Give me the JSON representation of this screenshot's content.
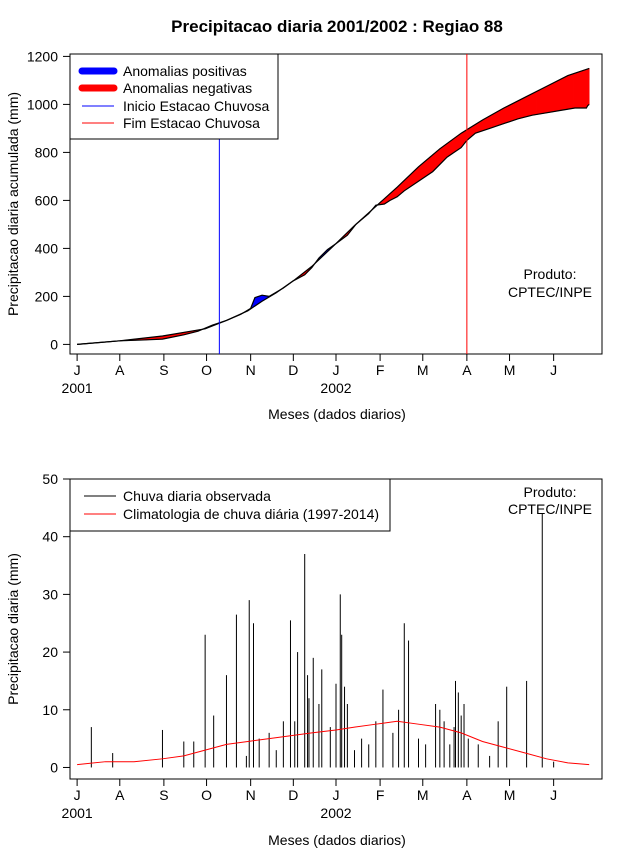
{
  "chart_data": [
    {
      "type": "area",
      "title": "Precipitacao diaria 2001/2002 : Regiao 88",
      "xlabel": "Meses (dados diarios)",
      "ylabel": "Precipitacao diaria acumulada (mm)",
      "ylim": [
        -40,
        1210
      ],
      "yticks": [
        0,
        200,
        400,
        600,
        800,
        1000,
        1200
      ],
      "xlim": [
        -5,
        369
      ],
      "month_ticks": [
        {
          "label": "J",
          "day": 0
        },
        {
          "label": "A",
          "day": 30
        },
        {
          "label": "S",
          "day": 61
        },
        {
          "label": "O",
          "day": 91
        },
        {
          "label": "N",
          "day": 122
        },
        {
          "label": "D",
          "day": 152
        },
        {
          "label": "J",
          "day": 182
        },
        {
          "label": "F",
          "day": 213
        },
        {
          "label": "M",
          "day": 243
        },
        {
          "label": "A",
          "day": 274
        },
        {
          "label": "M",
          "day": 304
        },
        {
          "label": "J",
          "day": 335
        }
      ],
      "year_labels": [
        {
          "label": "2001",
          "day": 0
        },
        {
          "label": "2002",
          "day": 182
        }
      ],
      "legend": {
        "position": "top-left",
        "entries": [
          {
            "label": "Anomalias positivas",
            "color": "#0000ff",
            "style": "thick"
          },
          {
            "label": "Anomalias negativas",
            "color": "#ff0000",
            "style": "thick"
          },
          {
            "label": "Inicio Estacao Chuvosa",
            "color": "#0000ff",
            "style": "thin"
          },
          {
            "label": "Fim Estacao Chuvosa",
            "color": "#ff0000",
            "style": "thin"
          }
        ]
      },
      "annotation": [
        "Produto:",
        "CPTEC/INPE"
      ],
      "season_start_day": 100,
      "season_end_day": 274,
      "observed_cumulative": [
        [
          0,
          0
        ],
        [
          20,
          10
        ],
        [
          30,
          15
        ],
        [
          45,
          18
        ],
        [
          60,
          22
        ],
        [
          75,
          40
        ],
        [
          85,
          55
        ],
        [
          95,
          80
        ],
        [
          105,
          100
        ],
        [
          115,
          125
        ],
        [
          122,
          150
        ],
        [
          125,
          195
        ],
        [
          130,
          205
        ],
        [
          135,
          200
        ],
        [
          145,
          235
        ],
        [
          152,
          265
        ],
        [
          160,
          290
        ],
        [
          165,
          320
        ],
        [
          170,
          360
        ],
        [
          176,
          395
        ],
        [
          182,
          420
        ],
        [
          190,
          455
        ],
        [
          196,
          500
        ],
        [
          200,
          520
        ],
        [
          205,
          545
        ],
        [
          210,
          580
        ],
        [
          216,
          585
        ],
        [
          220,
          600
        ],
        [
          225,
          615
        ],
        [
          230,
          640
        ],
        [
          240,
          680
        ],
        [
          250,
          720
        ],
        [
          255,
          750
        ],
        [
          260,
          780
        ],
        [
          265,
          800
        ],
        [
          270,
          820
        ],
        [
          274,
          850
        ],
        [
          280,
          880
        ],
        [
          290,
          900
        ],
        [
          300,
          920
        ],
        [
          310,
          940
        ],
        [
          320,
          955
        ],
        [
          330,
          965
        ],
        [
          340,
          975
        ],
        [
          350,
          985
        ],
        [
          358,
          985
        ],
        [
          359,
          995
        ],
        [
          360,
          1000
        ]
      ],
      "climatology_cumulative": [
        [
          0,
          0
        ],
        [
          30,
          15
        ],
        [
          60,
          35
        ],
        [
          90,
          65
        ],
        [
          105,
          100
        ],
        [
          120,
          140
        ],
        [
          130,
          180
        ],
        [
          140,
          215
        ],
        [
          152,
          265
        ],
        [
          165,
          325
        ],
        [
          182,
          420
        ],
        [
          195,
          495
        ],
        [
          210,
          575
        ],
        [
          225,
          655
        ],
        [
          240,
          740
        ],
        [
          255,
          815
        ],
        [
          270,
          880
        ],
        [
          285,
          935
        ],
        [
          300,
          985
        ],
        [
          315,
          1030
        ],
        [
          330,
          1075
        ],
        [
          345,
          1120
        ],
        [
          360,
          1150
        ]
      ]
    },
    {
      "type": "bar",
      "xlabel": "Meses (dados diarios)",
      "ylabel": "Precipitacao diaria (mm)",
      "ylim": [
        -2,
        50
      ],
      "yticks": [
        0,
        10,
        20,
        30,
        40,
        50
      ],
      "xlim": [
        -5,
        369
      ],
      "month_ticks": [
        {
          "label": "J",
          "day": 0
        },
        {
          "label": "A",
          "day": 30
        },
        {
          "label": "S",
          "day": 61
        },
        {
          "label": "O",
          "day": 91
        },
        {
          "label": "N",
          "day": 122
        },
        {
          "label": "D",
          "day": 152
        },
        {
          "label": "J",
          "day": 182
        },
        {
          "label": "F",
          "day": 213
        },
        {
          "label": "M",
          "day": 243
        },
        {
          "label": "A",
          "day": 274
        },
        {
          "label": "M",
          "day": 304
        },
        {
          "label": "J",
          "day": 335
        }
      ],
      "year_labels": [
        {
          "label": "2001",
          "day": 0
        },
        {
          "label": "2002",
          "day": 182
        }
      ],
      "legend": {
        "position": "top-left",
        "entries": [
          {
            "label": "Chuva diaria observada",
            "color": "#000000"
          },
          {
            "label": "Climatologia de chuva diária (1997-2014)",
            "color": "#ff0000"
          }
        ]
      },
      "annotation": [
        "Produto:",
        "CPTEC/INPE"
      ],
      "observed_daily": [
        [
          10,
          7
        ],
        [
          25,
          2.5
        ],
        [
          60,
          6.5
        ],
        [
          75,
          4.5
        ],
        [
          82,
          4.5
        ],
        [
          90,
          23
        ],
        [
          96,
          9
        ],
        [
          105,
          16
        ],
        [
          112,
          26.5
        ],
        [
          119,
          2
        ],
        [
          121,
          29
        ],
        [
          124,
          25
        ],
        [
          128,
          5
        ],
        [
          135,
          6
        ],
        [
          140,
          3
        ],
        [
          145,
          8
        ],
        [
          150,
          25.5
        ],
        [
          153,
          8
        ],
        [
          155,
          20
        ],
        [
          160,
          37
        ],
        [
          162,
          16
        ],
        [
          163,
          12
        ],
        [
          166,
          19
        ],
        [
          170,
          11
        ],
        [
          172,
          17
        ],
        [
          178,
          7
        ],
        [
          182,
          14.5
        ],
        [
          185,
          30
        ],
        [
          186,
          23
        ],
        [
          188,
          14
        ],
        [
          190,
          11
        ],
        [
          195,
          3
        ],
        [
          200,
          5
        ],
        [
          205,
          4
        ],
        [
          210,
          8
        ],
        [
          215,
          13.5
        ],
        [
          222,
          6
        ],
        [
          226,
          10
        ],
        [
          230,
          25
        ],
        [
          233,
          22
        ],
        [
          240,
          5
        ],
        [
          245,
          4
        ],
        [
          252,
          11
        ],
        [
          255,
          10
        ],
        [
          258,
          8
        ],
        [
          262,
          4
        ],
        [
          265,
          7
        ],
        [
          266,
          15
        ],
        [
          268,
          13
        ],
        [
          270,
          9
        ],
        [
          272,
          11
        ],
        [
          275,
          5
        ],
        [
          282,
          4
        ],
        [
          290,
          2
        ],
        [
          296,
          8
        ],
        [
          302,
          14
        ],
        [
          316,
          15
        ],
        [
          327,
          44
        ],
        [
          335,
          1
        ]
      ],
      "climatology_daily": [
        [
          0,
          0.5
        ],
        [
          20,
          1
        ],
        [
          40,
          1
        ],
        [
          60,
          1.5
        ],
        [
          75,
          2
        ],
        [
          90,
          3
        ],
        [
          105,
          4
        ],
        [
          120,
          4.5
        ],
        [
          135,
          5
        ],
        [
          150,
          5.5
        ],
        [
          165,
          6
        ],
        [
          182,
          6.5
        ],
        [
          195,
          7
        ],
        [
          210,
          7.5
        ],
        [
          225,
          8
        ],
        [
          240,
          7.5
        ],
        [
          255,
          7
        ],
        [
          270,
          6
        ],
        [
          285,
          4.5
        ],
        [
          300,
          3.5
        ],
        [
          315,
          2.5
        ],
        [
          330,
          1.5
        ],
        [
          345,
          0.8
        ],
        [
          360,
          0.5
        ]
      ]
    }
  ]
}
